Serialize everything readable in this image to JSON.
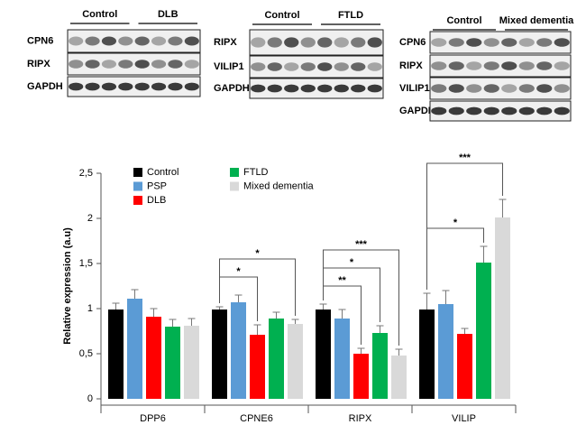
{
  "blots": [
    {
      "groups": [
        "Control",
        "DLB"
      ],
      "rows": [
        "CPN6",
        "RIPX",
        "GAPDH"
      ]
    },
    {
      "groups": [
        "Control",
        "FTLD"
      ],
      "rows": [
        "RIPX",
        "VILIP1",
        "GAPDH"
      ]
    },
    {
      "groups": [
        "Control",
        "Mixed dementia"
      ],
      "rows": [
        "CPN6",
        "RIPX",
        "VILIP1",
        "GAPDH"
      ]
    }
  ],
  "chart_data": {
    "type": "bar",
    "y_label": "Relative expression (a.u)",
    "categories": [
      "DPP6",
      "CPNE6",
      "RIPX",
      "VILIP"
    ],
    "series": [
      {
        "name": "Control",
        "color": "#000000",
        "values": [
          0.99,
          0.99,
          0.99,
          0.99
        ],
        "errors": [
          0.07,
          0.03,
          0.06,
          0.18
        ]
      },
      {
        "name": "PSP",
        "color": "#5b9bd5",
        "values": [
          1.11,
          1.07,
          0.89,
          1.05
        ],
        "errors": [
          0.1,
          0.08,
          0.1,
          0.15
        ]
      },
      {
        "name": "DLB",
        "color": "#ff0000",
        "values": [
          0.91,
          0.71,
          0.5,
          0.72
        ],
        "errors": [
          0.09,
          0.11,
          0.06,
          0.06
        ]
      },
      {
        "name": "FTLD",
        "color": "#00b050",
        "values": [
          0.8,
          0.89,
          0.73,
          1.51
        ],
        "errors": [
          0.08,
          0.07,
          0.08,
          0.18
        ]
      },
      {
        "name": "Mixed dementia",
        "color": "#d9d9d9",
        "values": [
          0.81,
          0.83,
          0.48,
          2.01
        ],
        "errors": [
          0.08,
          0.05,
          0.07,
          0.2
        ]
      }
    ],
    "ylim": [
      0,
      2.5
    ],
    "yticks": [
      0,
      {
        "value": 0.5,
        "label": "0,5"
      },
      1,
      {
        "value": 1.5,
        "label": "1,5"
      },
      2,
      {
        "value": 2.5,
        "label": "2,5"
      }
    ],
    "grid": false,
    "annotations": [
      {
        "category": "CPNE6",
        "from": "Control",
        "to": "DLB",
        "text": "*"
      },
      {
        "category": "CPNE6",
        "from": "Control",
        "to": "Mixed dementia",
        "text": "*"
      },
      {
        "category": "RIPX",
        "from": "Control",
        "to": "DLB",
        "text": "**"
      },
      {
        "category": "RIPX",
        "from": "Control",
        "to": "FTLD",
        "text": "*"
      },
      {
        "category": "RIPX",
        "from": "Control",
        "to": "Mixed dementia",
        "text": "***"
      },
      {
        "category": "VILIP",
        "from": "Control",
        "to": "FTLD",
        "text": "*"
      },
      {
        "category": "VILIP",
        "from": "Control",
        "to": "Mixed dementia",
        "text": "***"
      }
    ]
  }
}
